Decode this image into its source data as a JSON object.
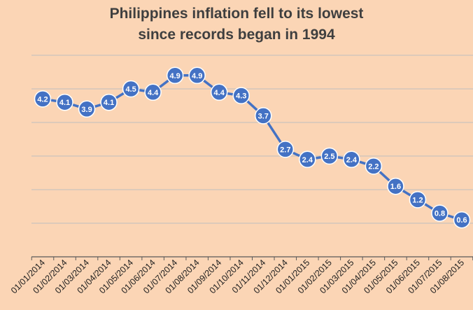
{
  "chart_data": {
    "type": "line",
    "title_lines": [
      "Philippines inflation fell to its lowest",
      "since records began in 1994"
    ],
    "xlabel": "",
    "ylabel": "",
    "ylim": [
      -0.5,
      6.0
    ],
    "grid": true,
    "gridlines_at": [
      0.5,
      1.5,
      2.5,
      3.5,
      4.5,
      5.5
    ],
    "y_tick_labels_shown": false,
    "legend": "none",
    "colors": {
      "background": "#FBD5B5",
      "line": "#4472C4",
      "marker_fill": "#4472C4",
      "marker_edge": "#ffffff",
      "gridline": "#bfbfbf",
      "axis": "#595959",
      "title": "#3f3f3f"
    },
    "categories": [
      "01/01/2014",
      "01/02/2014",
      "01/03/2014",
      "01/04/2014",
      "01/05/2014",
      "01/06/2014",
      "01/07/2014",
      "01/08/2014",
      "01/09/2014",
      "01/10/2014",
      "01/11/2014",
      "01/12/2014",
      "01/01/2015",
      "01/02/2015",
      "01/03/2015",
      "01/04/2015",
      "01/05/2015",
      "01/06/2015",
      "01/07/2015",
      "01/08/2015"
    ],
    "values": [
      4.2,
      4.1,
      3.9,
      4.1,
      4.5,
      4.4,
      4.9,
      4.9,
      4.4,
      4.3,
      3.7,
      2.7,
      2.4,
      2.5,
      2.4,
      2.2,
      1.6,
      1.2,
      0.8,
      0.6
    ]
  }
}
